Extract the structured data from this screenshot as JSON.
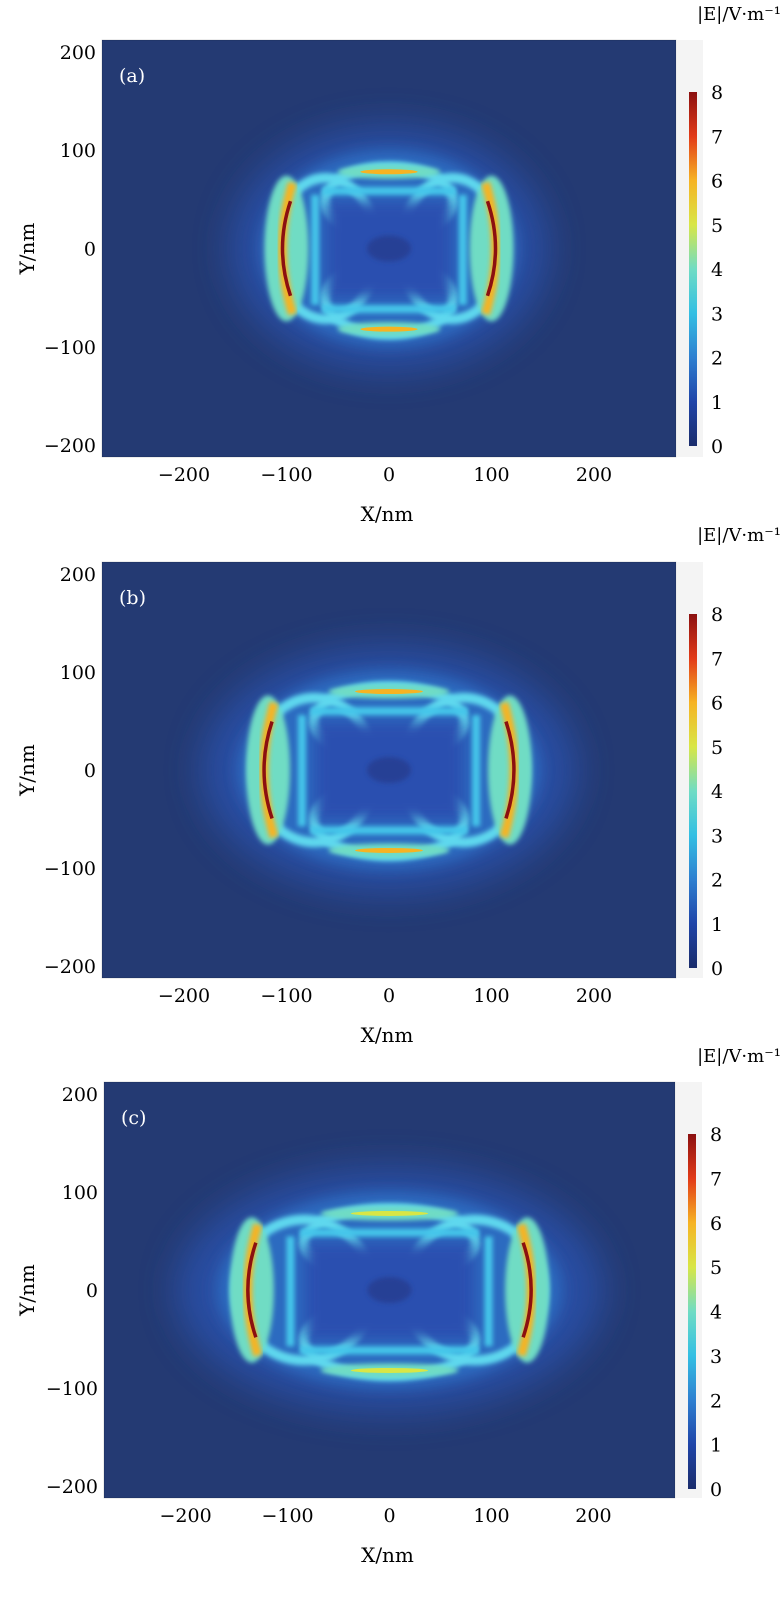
{
  "chart_data": [
    {
      "type": "heatmap",
      "panel_label": "(a)",
      "xlabel": "X/nm",
      "ylabel": "Y/nm",
      "xlim": [
        -280,
        280
      ],
      "ylim": [
        -212,
        212
      ],
      "xticks": [
        -200,
        -100,
        0,
        100,
        200
      ],
      "yticks": [
        -200,
        -100,
        0,
        100,
        200
      ],
      "tick_labels_x": [
        "−200",
        "−100",
        "0",
        "100",
        "200"
      ],
      "tick_labels_y": [
        "−200",
        "−100",
        "0",
        "100",
        "200"
      ],
      "colorbar": {
        "title": "|E|/V·m⁻¹",
        "min": 0,
        "max": 8,
        "ticks": [
          0,
          1,
          2,
          3,
          4,
          5,
          6,
          7,
          8
        ],
        "tick_labels": [
          "0",
          "1",
          "2",
          "3",
          "4",
          "5",
          "6",
          "7",
          "8"
        ]
      },
      "hotspots": [
        {
          "x": -100,
          "y": 0,
          "value": 8
        },
        {
          "x": 100,
          "y": 0,
          "value": 8
        },
        {
          "x": 0,
          "y": 78,
          "value": 6
        },
        {
          "x": 0,
          "y": -82,
          "value": 6
        },
        {
          "x": 0,
          "y": 0,
          "value": 1
        }
      ]
    },
    {
      "type": "heatmap",
      "panel_label": "(b)",
      "xlabel": "X/nm",
      "ylabel": "Y/nm",
      "xlim": [
        -280,
        280
      ],
      "ylim": [
        -212,
        212
      ],
      "xticks": [
        -200,
        -100,
        0,
        100,
        200
      ],
      "yticks": [
        -200,
        -100,
        0,
        100,
        200
      ],
      "tick_labels_x": [
        "−200",
        "−100",
        "0",
        "100",
        "200"
      ],
      "tick_labels_y": [
        "−200",
        "−100",
        "0",
        "100",
        "200"
      ],
      "colorbar": {
        "title": "|E|/V·m⁻¹",
        "min": 0,
        "max": 8,
        "ticks": [
          0,
          1,
          2,
          3,
          4,
          5,
          6,
          7,
          8
        ],
        "tick_labels": [
          "0",
          "1",
          "2",
          "3",
          "4",
          "5",
          "6",
          "7",
          "8"
        ]
      },
      "hotspots": [
        {
          "x": -118,
          "y": 0,
          "value": 8
        },
        {
          "x": 118,
          "y": 0,
          "value": 8
        },
        {
          "x": 0,
          "y": 80,
          "value": 5.5
        },
        {
          "x": 0,
          "y": -82,
          "value": 5.5
        },
        {
          "x": 0,
          "y": 0,
          "value": 1
        }
      ]
    },
    {
      "type": "heatmap",
      "panel_label": "(c)",
      "xlabel": "X/nm",
      "ylabel": "Y/nm",
      "xlim": [
        -280,
        280
      ],
      "ylim": [
        -212,
        212
      ],
      "xticks": [
        -200,
        -100,
        0,
        100,
        200
      ],
      "yticks": [
        -200,
        -100,
        0,
        100,
        200
      ],
      "tick_labels_x": [
        "−200",
        "−100",
        "0",
        "100",
        "200"
      ],
      "tick_labels_y": [
        "−200",
        "−100",
        "0",
        "100",
        "200"
      ],
      "colorbar": {
        "title": "|E|/V·m⁻¹",
        "min": 0,
        "max": 8,
        "ticks": [
          0,
          1,
          2,
          3,
          4,
          5,
          6,
          7,
          8
        ],
        "tick_labels": [
          "0",
          "1",
          "2",
          "3",
          "4",
          "5",
          "6",
          "7",
          "8"
        ]
      },
      "hotspots": [
        {
          "x": -135,
          "y": 0,
          "value": 8
        },
        {
          "x": 135,
          "y": 0,
          "value": 8
        },
        {
          "x": 0,
          "y": 78,
          "value": 5
        },
        {
          "x": 0,
          "y": -82,
          "value": 5
        },
        {
          "x": 0,
          "y": 0,
          "value": 1
        }
      ]
    }
  ],
  "colors": {
    "background_field": "#243a73",
    "colormap": [
      "#1a2c6b",
      "#1f44a8",
      "#2e7fd0",
      "#33bfe3",
      "#6fdcc4",
      "#d8e646",
      "#f6b323",
      "#e23a18",
      "#8b1010"
    ]
  }
}
